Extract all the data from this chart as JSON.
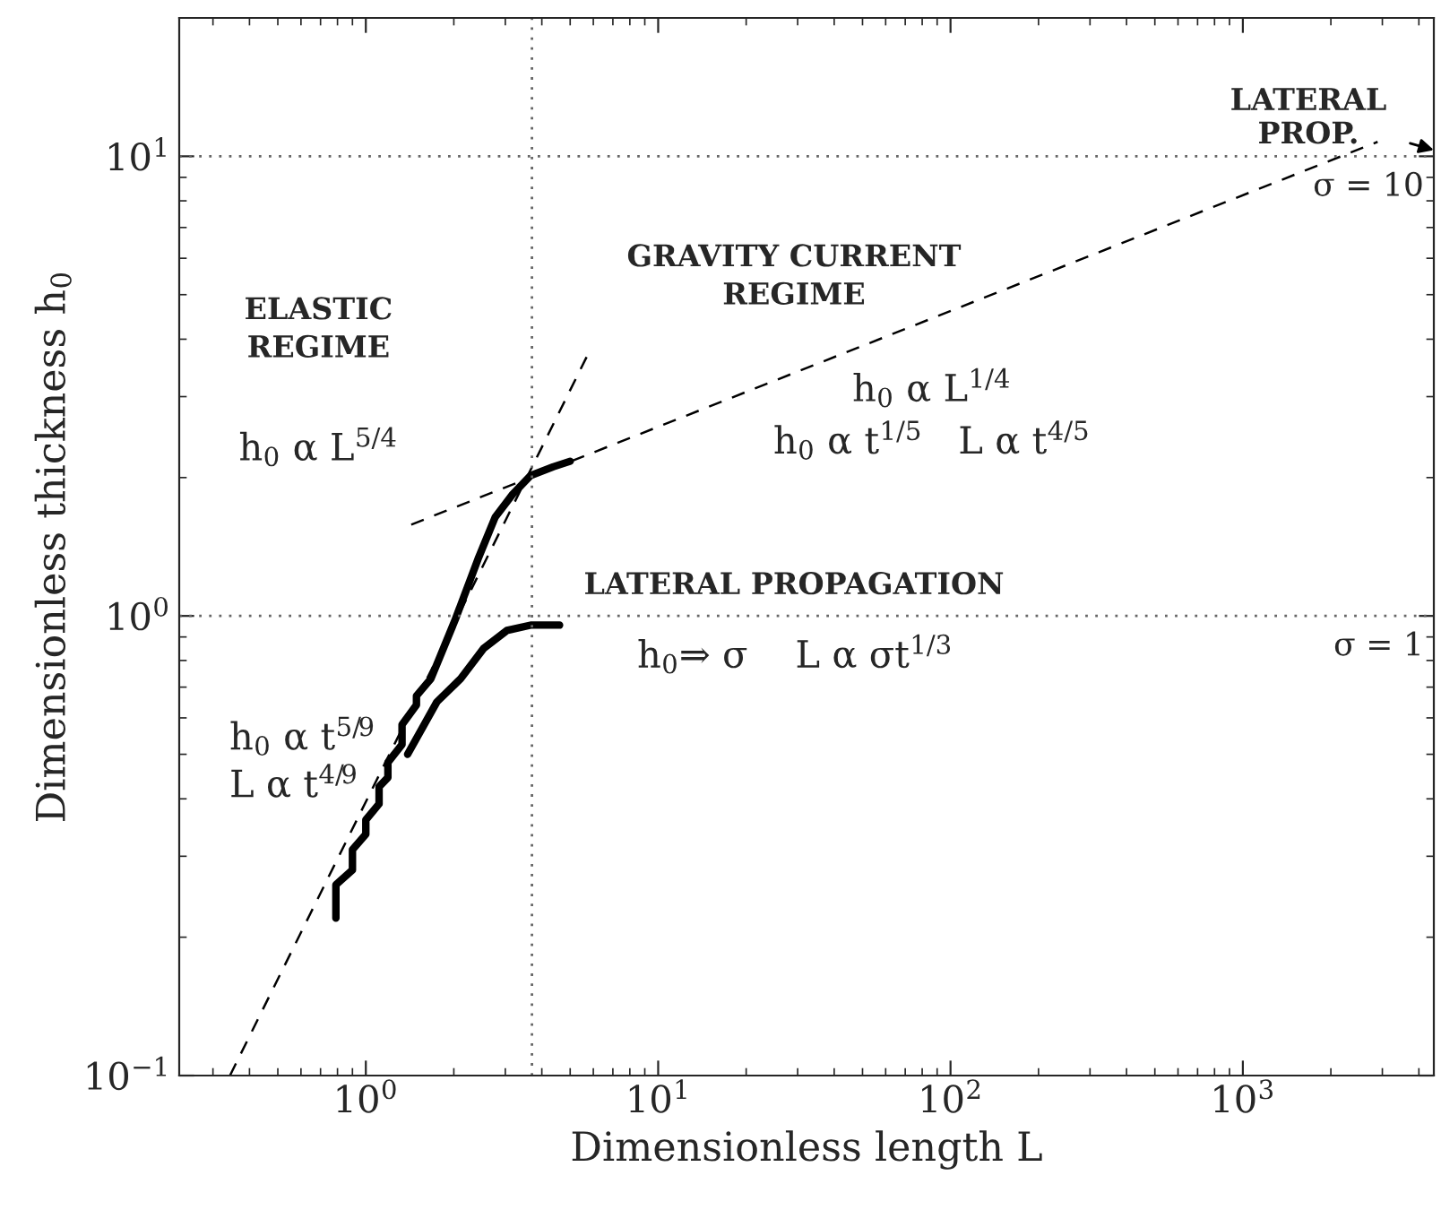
{
  "chart_data": {
    "type": "line",
    "xlabel": "Dimensionless length L",
    "ylabel": "Dimensionless thickness h$_{0}$",
    "log": "xy",
    "xlim": [
      0.23,
      4500
    ],
    "ylim": [
      0.1,
      20
    ],
    "xticks": [
      {
        "value": 1,
        "label": "10$^{0}$"
      },
      {
        "value": 10,
        "label": "10$^{1}$"
      },
      {
        "value": 100,
        "label": "10$^{2}$"
      },
      {
        "value": 1000,
        "label": "10$^{3}$"
      }
    ],
    "yticks": [
      {
        "value": 0.1,
        "label": "10$^{−1}$"
      },
      {
        "value": 1,
        "label": "10$^{0}$"
      },
      {
        "value": 10,
        "label": "10$^{1}$"
      }
    ],
    "grid": false,
    "series": [
      {
        "color": "#000000",
        "line_style": "solid",
        "x": [
          0.79,
          0.79,
          0.9,
          0.9,
          1.0,
          1.0,
          1.11,
          1.11,
          1.19,
          1.19,
          1.33,
          1.33,
          1.49,
          1.49,
          1.67,
          2.02,
          2.42,
          2.77,
          3.18,
          3.66,
          4.37,
          5.0
        ],
        "values": [
          0.22,
          0.26,
          0.28,
          0.31,
          0.335,
          0.36,
          0.39,
          0.425,
          0.445,
          0.48,
          0.525,
          0.58,
          0.64,
          0.67,
          0.73,
          0.98,
          1.33,
          1.64,
          1.84,
          2.02,
          2.11,
          2.17
        ]
      },
      {
        "color": "#000000",
        "line_style": "solid",
        "x": [
          1.39,
          1.75,
          2.11,
          2.53,
          3.04,
          3.66,
          4.6
        ],
        "values": [
          0.5,
          0.65,
          0.73,
          0.85,
          0.93,
          0.955,
          0.955
        ]
      },
      {
        "color": "#000000",
        "line_style": "dashed",
        "x": [
          0.343,
          5.79
        ],
        "values": [
          0.1,
          3.74
        ]
      },
      {
        "color": "#000000",
        "line_style": "dashed",
        "x": [
          1.43,
          2890
        ],
        "values": [
          1.58,
          10.75
        ]
      }
    ],
    "ref_lines": [
      {
        "axis": "y",
        "value": 10,
        "label": "σ = 10",
        "color": "#666666",
        "line_style": "dotted"
      },
      {
        "axis": "y",
        "value": 1,
        "label": "σ = 1",
        "color": "#666666",
        "line_style": "dotted"
      },
      {
        "axis": "x",
        "value": 3.7,
        "label": null,
        "color": "#666666",
        "line_style": "dotted"
      }
    ],
    "annotations": [
      "ELASTIC\nREGIME",
      "h$_{0}$ α L$^{5/4}$",
      "h$_{0}$ α t$^{5/9}$\nL α t$^{4/9}$",
      "GRAVITY CURRENT\nREGIME",
      "h$_{0}$ α L$^{1/4}$\nh$_{0}$ α t$^{1/5}$   L α t$^{4/5}$",
      "LATERAL PROPAGATION",
      "h$_{0}$⇒ σ    L α σt$^{1/3}$",
      "LATERAL\nPROP."
    ]
  }
}
